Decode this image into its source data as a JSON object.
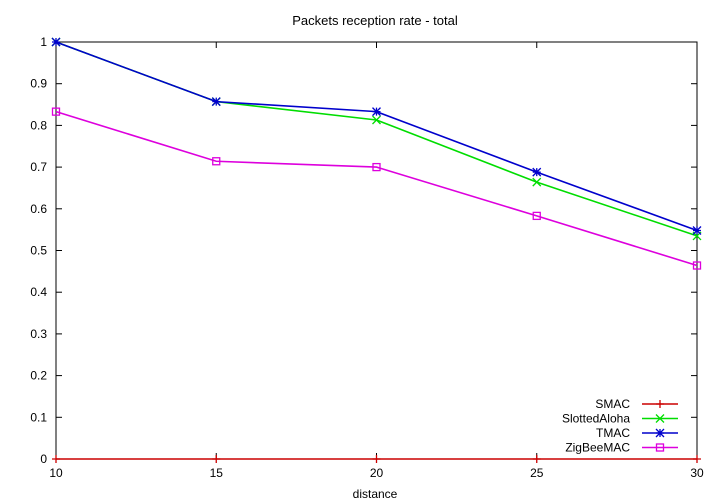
{
  "chart_data": {
    "type": "line",
    "title": "Packets reception rate - total",
    "xlabel": "distance",
    "ylabel": "",
    "x": [
      10,
      15,
      20,
      25,
      30
    ],
    "xlim": [
      10,
      30
    ],
    "ylim": [
      0,
      1
    ],
    "x_ticks": [
      "10",
      "15",
      "20",
      "25",
      "30"
    ],
    "y_ticks": [
      "0",
      "0.1",
      "0.2",
      "0.3",
      "0.4",
      "0.5",
      "0.6",
      "0.7",
      "0.8",
      "0.9",
      "1"
    ],
    "grid": false,
    "legend_position": "bottom-right",
    "series": [
      {
        "name": "SMAC",
        "color": "#cc0000",
        "marker": "plus",
        "values": [
          0,
          0,
          0,
          0,
          0
        ]
      },
      {
        "name": "SlottedAloha",
        "color": "#00dd00",
        "marker": "cross",
        "values": [
          1.0,
          0.857,
          0.813,
          0.664,
          0.535
        ]
      },
      {
        "name": "TMAC",
        "color": "#0000cc",
        "marker": "star",
        "values": [
          1.0,
          0.857,
          0.833,
          0.688,
          0.548
        ]
      },
      {
        "name": "ZigBeeMAC",
        "color": "#dd00dd",
        "marker": "open-square",
        "values": [
          0.833,
          0.714,
          0.7,
          0.583,
          0.464
        ]
      }
    ]
  }
}
